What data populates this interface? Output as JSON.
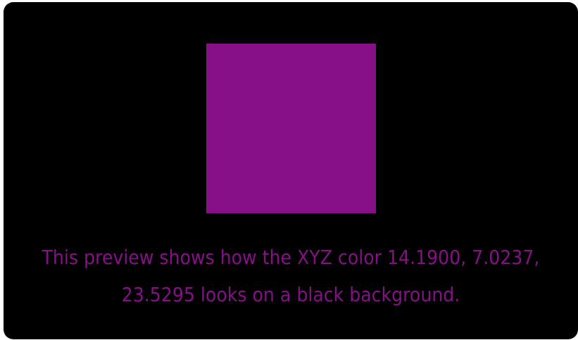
{
  "preview": {
    "color": "#861087",
    "text_color": "#861087",
    "background_color": "#000000",
    "caption": "This preview shows how the XYZ color 14.1900, 7.0237, 23.5295 looks on a black background."
  }
}
